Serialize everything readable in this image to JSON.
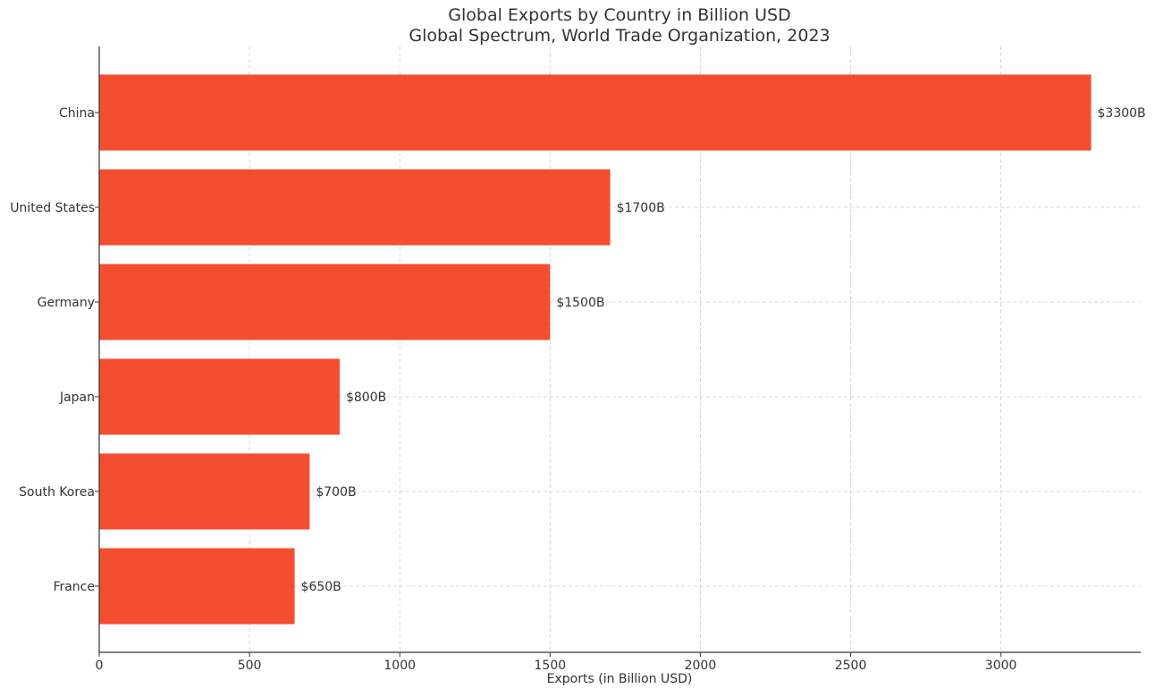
{
  "chart_data": {
    "type": "bar",
    "orientation": "horizontal",
    "title": "Global Exports by Country in Billion USD",
    "subtitle": "Global Spectrum, World Trade Organization, 2023",
    "xlabel": "Exports (in Billion USD)",
    "ylabel": "",
    "categories": [
      "China",
      "United States",
      "Germany",
      "Japan",
      "South Korea",
      "France"
    ],
    "values": [
      3300,
      1700,
      1500,
      800,
      700,
      650
    ],
    "data_labels": [
      "$3300B",
      "$1700B",
      "$1500B",
      "$800B",
      "$700B",
      "$650B"
    ],
    "xlim": [
      0,
      3465
    ],
    "xticks": [
      0,
      500,
      1000,
      1500,
      2000,
      2500,
      3000
    ],
    "grid": true,
    "legend": "none",
    "bar_color": "#f34e2f"
  }
}
